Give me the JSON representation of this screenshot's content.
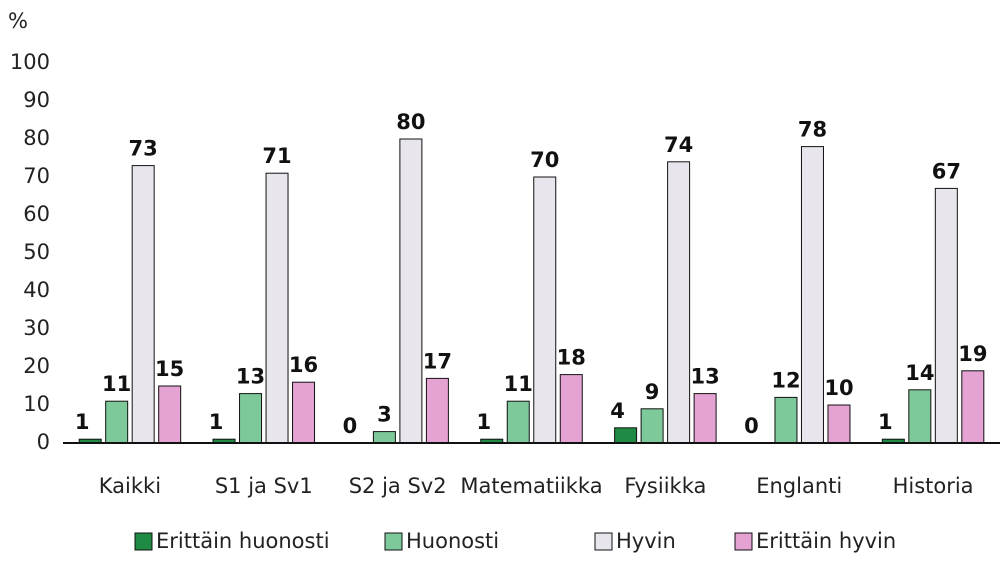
{
  "chart_data": {
    "type": "bar",
    "y_label": "%",
    "categories": [
      "Kaikki",
      "S1 ja Sv1",
      "S2 ja Sv2",
      "Matematiikka",
      "Fysiikka",
      "Englanti",
      "Historia"
    ],
    "series": [
      {
        "name": "Erittäin huonosti",
        "color": "#1e8a44",
        "values": [
          1,
          1,
          0,
          1,
          4,
          0,
          1
        ]
      },
      {
        "name": "Huonosti",
        "color": "#7dc99a",
        "values": [
          11,
          13,
          3,
          11,
          9,
          12,
          14
        ]
      },
      {
        "name": "Hyvin",
        "color": "#e8e6ec",
        "values": [
          73,
          71,
          80,
          70,
          74,
          78,
          67
        ]
      },
      {
        "name": "Erittäin hyvin",
        "color": "#e4a3d2",
        "values": [
          15,
          16,
          17,
          18,
          13,
          10,
          19
        ]
      }
    ],
    "ylim": [
      0,
      100
    ],
    "yticks": [
      0,
      10,
      20,
      30,
      40,
      50,
      60,
      70,
      80,
      90,
      100
    ],
    "grid": false,
    "legend": "bottom"
  }
}
